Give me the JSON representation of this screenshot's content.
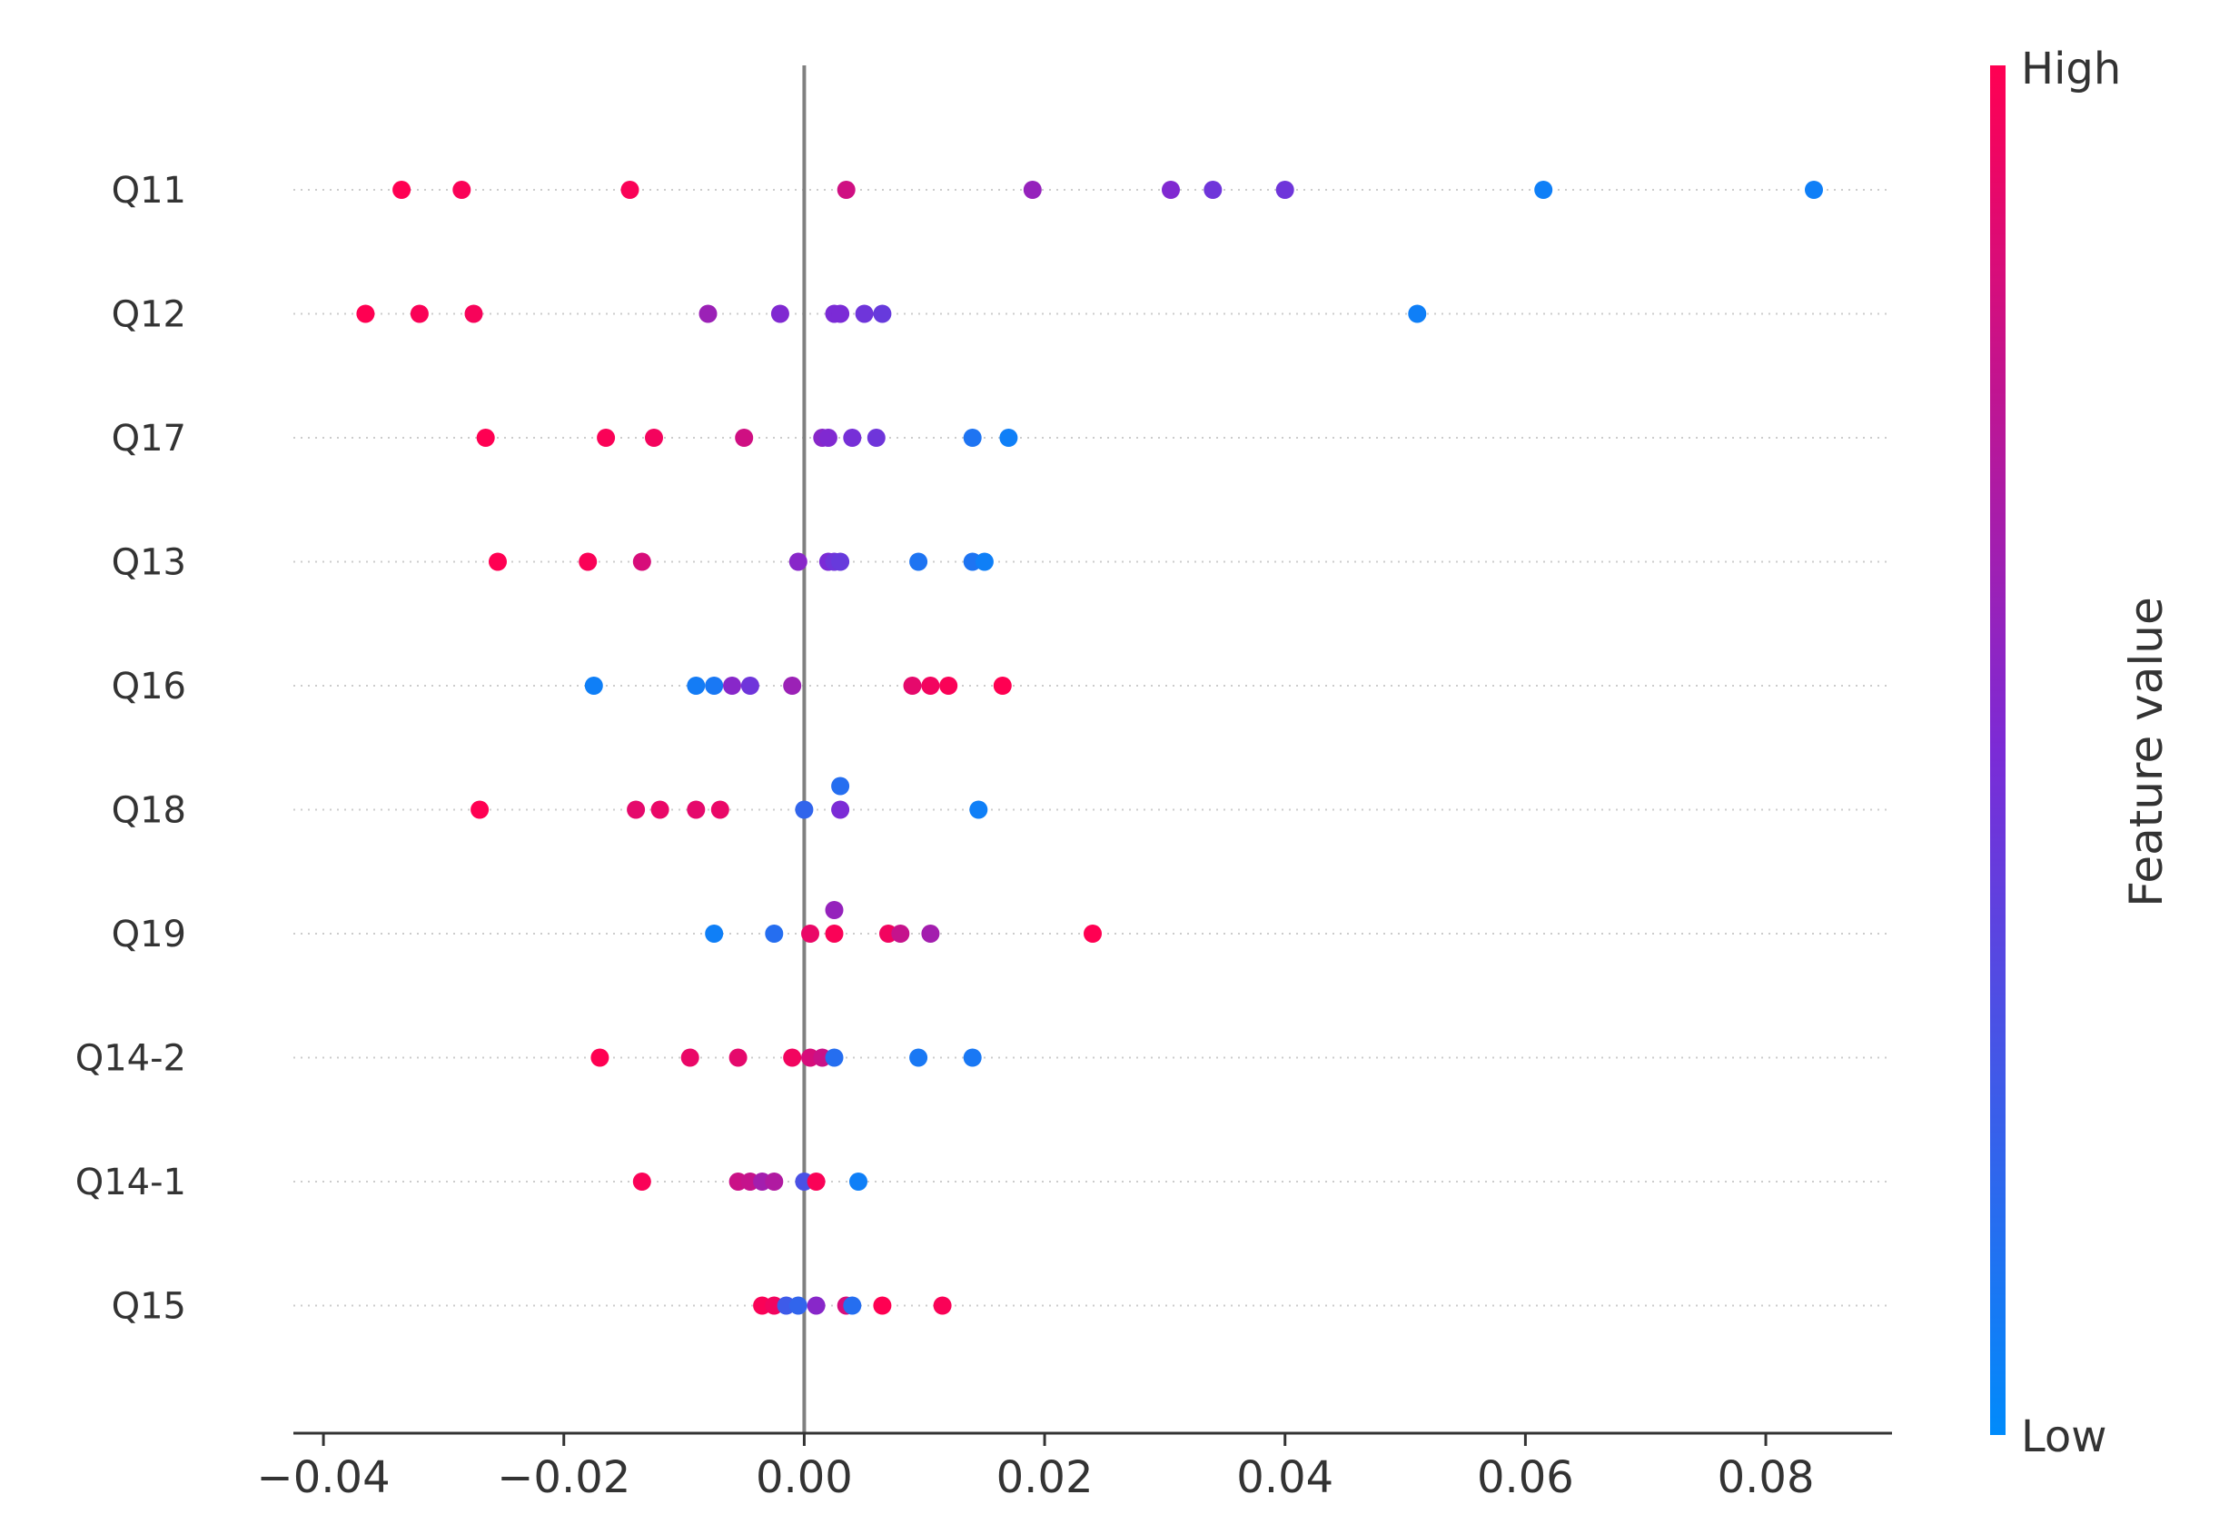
{
  "chart_data": {
    "type": "scatter",
    "title": "",
    "xlabel": "",
    "ylabel": "",
    "xlim": [
      -0.0425,
      0.0905
    ],
    "xticks": [
      -0.04,
      -0.02,
      0.0,
      0.02,
      0.04,
      0.06,
      0.08
    ],
    "xtick_labels": [
      "−0.04",
      "−0.02",
      "0.00",
      "0.02",
      "0.04",
      "0.06",
      "0.08"
    ],
    "grid": false,
    "zero_line": true,
    "colorbar": {
      "title": "Feature value",
      "high_label": "High",
      "low_label": "Low",
      "high_color": "#ff0052",
      "mid_color": "#7b2bd6",
      "low_color": "#008bfb"
    },
    "features": [
      {
        "name": "Q11",
        "points": [
          {
            "x": -0.0335,
            "v": 1.0
          },
          {
            "x": -0.0285,
            "v": 0.98
          },
          {
            "x": -0.0145,
            "v": 0.98
          },
          {
            "x": 0.0035,
            "v": 0.82
          },
          {
            "x": 0.019,
            "v": 0.6
          },
          {
            "x": 0.0305,
            "v": 0.52
          },
          {
            "x": 0.034,
            "v": 0.45
          },
          {
            "x": 0.04,
            "v": 0.45
          },
          {
            "x": 0.0615,
            "v": 0.06
          },
          {
            "x": 0.084,
            "v": 0.06
          }
        ]
      },
      {
        "name": "Q12",
        "points": [
          {
            "x": -0.0365,
            "v": 1.0
          },
          {
            "x": -0.032,
            "v": 0.98
          },
          {
            "x": -0.0275,
            "v": 0.97
          },
          {
            "x": -0.008,
            "v": 0.62
          },
          {
            "x": -0.002,
            "v": 0.52
          },
          {
            "x": 0.0025,
            "v": 0.5
          },
          {
            "x": 0.003,
            "v": 0.5
          },
          {
            "x": 0.005,
            "v": 0.45
          },
          {
            "x": 0.0065,
            "v": 0.42
          },
          {
            "x": 0.051,
            "v": 0.06
          }
        ]
      },
      {
        "name": "Q17",
        "points": [
          {
            "x": -0.0265,
            "v": 1.0
          },
          {
            "x": -0.0165,
            "v": 0.98
          },
          {
            "x": -0.0125,
            "v": 0.96
          },
          {
            "x": -0.005,
            "v": 0.82
          },
          {
            "x": 0.0015,
            "v": 0.55
          },
          {
            "x": 0.002,
            "v": 0.52
          },
          {
            "x": 0.004,
            "v": 0.48
          },
          {
            "x": 0.006,
            "v": 0.45
          },
          {
            "x": 0.014,
            "v": 0.12
          },
          {
            "x": 0.017,
            "v": 0.06
          }
        ]
      },
      {
        "name": "Q13",
        "points": [
          {
            "x": -0.0255,
            "v": 1.0
          },
          {
            "x": -0.018,
            "v": 0.98
          },
          {
            "x": -0.0135,
            "v": 0.85
          },
          {
            "x": -0.0005,
            "v": 0.55
          },
          {
            "x": 0.002,
            "v": 0.5
          },
          {
            "x": 0.0025,
            "v": 0.45
          },
          {
            "x": 0.003,
            "v": 0.42
          },
          {
            "x": 0.0095,
            "v": 0.12
          },
          {
            "x": 0.014,
            "v": 0.12
          },
          {
            "x": 0.015,
            "v": 0.06
          }
        ]
      },
      {
        "name": "Q16",
        "points": [
          {
            "x": -0.0175,
            "v": 0.06
          },
          {
            "x": -0.009,
            "v": 0.08
          },
          {
            "x": -0.0075,
            "v": 0.1
          },
          {
            "x": -0.006,
            "v": 0.55
          },
          {
            "x": -0.0045,
            "v": 0.45
          },
          {
            "x": -0.001,
            "v": 0.62
          },
          {
            "x": 0.009,
            "v": 0.9
          },
          {
            "x": 0.0105,
            "v": 0.95
          },
          {
            "x": 0.012,
            "v": 0.98
          },
          {
            "x": 0.0165,
            "v": 1.0
          }
        ]
      },
      {
        "name": "Q18",
        "points": [
          {
            "x": -0.027,
            "v": 1.0
          },
          {
            "x": -0.014,
            "v": 0.9
          },
          {
            "x": -0.012,
            "v": 0.92
          },
          {
            "x": -0.009,
            "v": 0.9
          },
          {
            "x": -0.007,
            "v": 0.92
          },
          {
            "x": 0.0,
            "v": 0.2
          },
          {
            "x": 0.003,
            "v": 0.15,
            "dy": -1
          },
          {
            "x": 0.003,
            "v": 0.5
          },
          {
            "x": 0.0145,
            "v": 0.06
          }
        ]
      },
      {
        "name": "Q19",
        "points": [
          {
            "x": -0.0075,
            "v": 0.06
          },
          {
            "x": -0.0025,
            "v": 0.15
          },
          {
            "x": 0.0005,
            "v": 0.92
          },
          {
            "x": 0.0025,
            "v": 0.6,
            "dy": -1
          },
          {
            "x": 0.0025,
            "v": 0.98
          },
          {
            "x": 0.007,
            "v": 0.95
          },
          {
            "x": 0.008,
            "v": 0.78
          },
          {
            "x": 0.0105,
            "v": 0.65
          },
          {
            "x": 0.024,
            "v": 1.0
          }
        ]
      },
      {
        "name": "Q14-2",
        "points": [
          {
            "x": -0.017,
            "v": 1.0
          },
          {
            "x": -0.0095,
            "v": 0.92
          },
          {
            "x": -0.0055,
            "v": 0.9
          },
          {
            "x": -0.001,
            "v": 0.95
          },
          {
            "x": 0.0005,
            "v": 0.85
          },
          {
            "x": 0.0015,
            "v": 0.8
          },
          {
            "x": 0.0025,
            "v": 0.15
          },
          {
            "x": 0.0095,
            "v": 0.1
          },
          {
            "x": 0.014,
            "v": 0.1
          }
        ]
      },
      {
        "name": "Q14-1",
        "points": [
          {
            "x": -0.0135,
            "v": 0.98
          },
          {
            "x": -0.0055,
            "v": 0.8
          },
          {
            "x": -0.0045,
            "v": 0.78
          },
          {
            "x": -0.0035,
            "v": 0.65
          },
          {
            "x": -0.0025,
            "v": 0.7
          },
          {
            "x": 0.0,
            "v": 0.3
          },
          {
            "x": 0.001,
            "v": 0.98
          },
          {
            "x": 0.0045,
            "v": 0.06
          }
        ]
      },
      {
        "name": "Q15",
        "points": [
          {
            "x": -0.0035,
            "v": 0.98
          },
          {
            "x": -0.0025,
            "v": 0.95
          },
          {
            "x": -0.0015,
            "v": 0.25
          },
          {
            "x": -0.0005,
            "v": 0.2
          },
          {
            "x": 0.001,
            "v": 0.55
          },
          {
            "x": 0.0035,
            "v": 0.85
          },
          {
            "x": 0.004,
            "v": 0.15
          },
          {
            "x": 0.0065,
            "v": 1.0
          },
          {
            "x": 0.0115,
            "v": 0.98
          }
        ]
      }
    ]
  }
}
